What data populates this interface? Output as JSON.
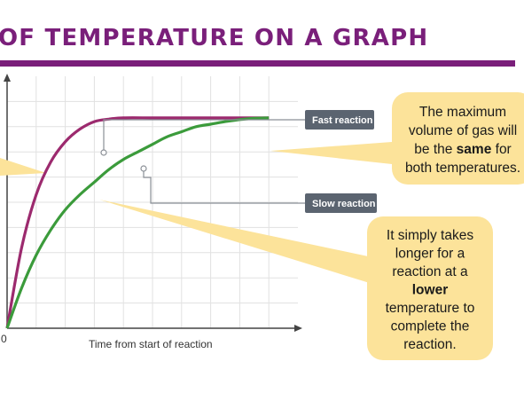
{
  "slide": {
    "title": "OF TEMPERATURE ON A GRAPH",
    "accent_color": "#7a1f7a"
  },
  "chart_data": {
    "type": "line",
    "title": "",
    "xlabel": "Time from start of reaction",
    "ylabel": "",
    "origin_label": "0",
    "x_range": [
      0,
      10
    ],
    "y_range": [
      0,
      10
    ],
    "grid": true,
    "series": [
      {
        "name": "Fast reaction",
        "color": "#9c2a6e",
        "x": [
          0,
          0.5,
          1,
          1.5,
          2,
          2.5,
          3,
          3.5,
          4,
          5,
          6,
          7,
          8,
          9
        ],
        "y": [
          0,
          3.2,
          5.3,
          6.6,
          7.4,
          7.9,
          8.2,
          8.3,
          8.35,
          8.35,
          8.35,
          8.35,
          8.35,
          8.35
        ]
      },
      {
        "name": "Slow reaction",
        "color": "#3b9b3b",
        "x": [
          0,
          0.5,
          1,
          1.5,
          2,
          2.5,
          3,
          3.5,
          4,
          4.5,
          5,
          5.5,
          6,
          6.5,
          7,
          7.5,
          8,
          8.5,
          9
        ],
        "y": [
          0,
          1.6,
          2.9,
          3.9,
          4.7,
          5.3,
          5.8,
          6.3,
          6.7,
          7.0,
          7.3,
          7.6,
          7.8,
          8.0,
          8.1,
          8.2,
          8.28,
          8.33,
          8.35
        ]
      }
    ],
    "labels": {
      "fast": "Fast reaction",
      "slow": "Slow reaction"
    }
  },
  "callouts": {
    "top_right": {
      "lines": [
        [
          {
            "text": "The maximum",
            "bold": false
          }
        ],
        [
          {
            "text": "volume of gas will",
            "bold": false
          }
        ],
        [
          {
            "text": "be the ",
            "bold": false
          },
          {
            "text": "same",
            "bold": true
          },
          {
            "text": " for",
            "bold": false
          }
        ],
        [
          {
            "text": "both temperatures.",
            "bold": false
          }
        ]
      ]
    },
    "bottom_right": {
      "lines": [
        [
          {
            "text": "It simply takes",
            "bold": false
          }
        ],
        [
          {
            "text": "longer for a",
            "bold": false
          }
        ],
        [
          {
            "text": "reaction at a",
            "bold": false
          }
        ],
        [
          {
            "text": "lower",
            "bold": true
          }
        ],
        [
          {
            "text": "temperature to",
            "bold": false
          }
        ],
        [
          {
            "text": "complete the",
            "bold": false
          }
        ],
        [
          {
            "text": "reaction.",
            "bold": false
          }
        ]
      ]
    },
    "fill_color": "#fce39a"
  }
}
